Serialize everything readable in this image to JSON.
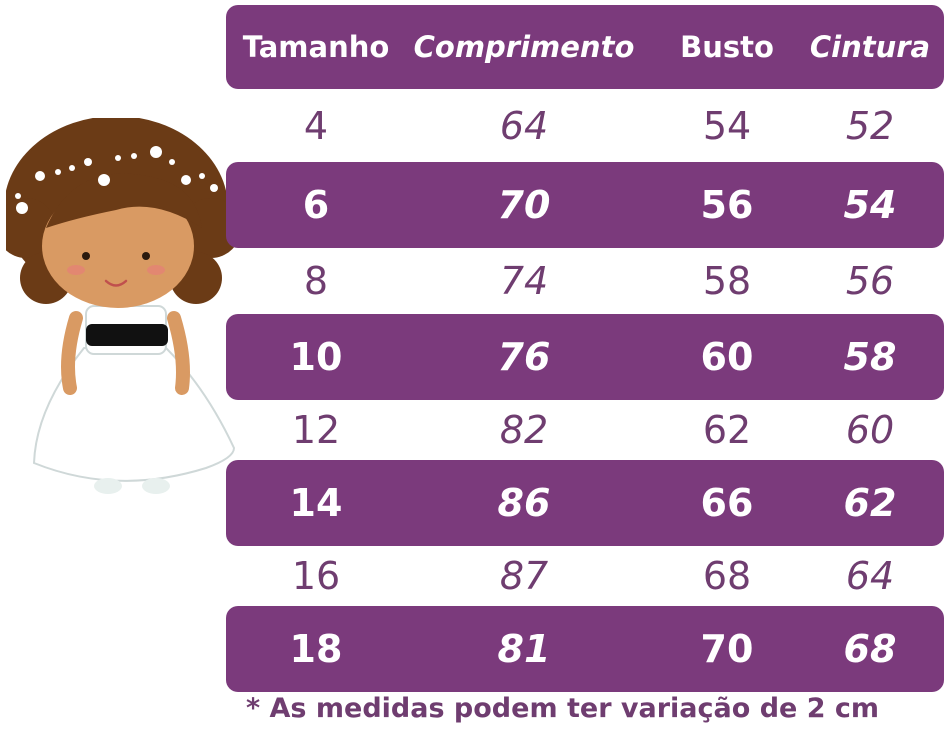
{
  "table": {
    "headers": [
      "Tamanho",
      "Comprimento",
      "Busto",
      "Cintura"
    ],
    "rows": [
      {
        "tamanho": "4",
        "comprimento": "64",
        "busto": "54",
        "cintura": "52"
      },
      {
        "tamanho": "6",
        "comprimento": "70",
        "busto": "56",
        "cintura": "54"
      },
      {
        "tamanho": "8",
        "comprimento": "74",
        "busto": "58",
        "cintura": "56"
      },
      {
        "tamanho": "10",
        "comprimento": "76",
        "busto": "60",
        "cintura": "58"
      },
      {
        "tamanho": "12",
        "comprimento": "82",
        "busto": "62",
        "cintura": "60"
      },
      {
        "tamanho": "14",
        "comprimento": "86",
        "busto": "66",
        "cintura": "62"
      },
      {
        "tamanho": "16",
        "comprimento": "87",
        "busto": "68",
        "cintura": "64"
      },
      {
        "tamanho": "18",
        "comprimento": "81",
        "busto": "70",
        "cintura": "68"
      }
    ]
  },
  "note": "* As medidas podem ter variação de 2 cm",
  "colors": {
    "purple": "#7b3a7c",
    "text_purple": "#6f3d70"
  },
  "illustration": {
    "icon": "girl-in-white-dress-icon"
  }
}
